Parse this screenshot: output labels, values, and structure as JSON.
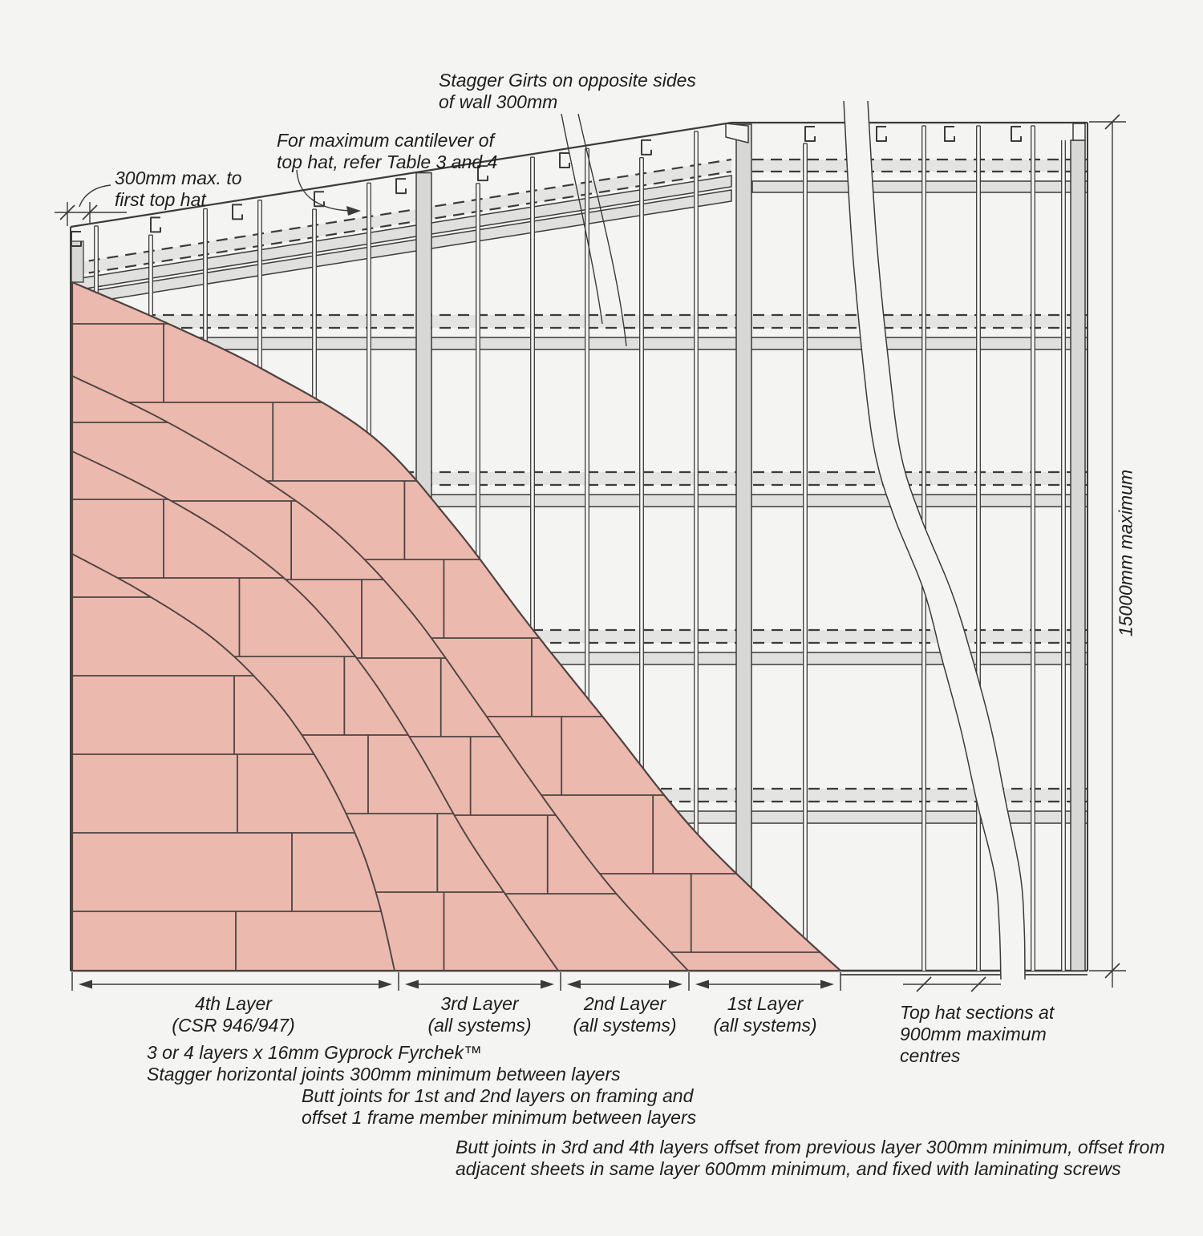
{
  "colors": {
    "background": "#f4f4f2",
    "line": "#3b3b39",
    "board_fill": "#ecb9ae",
    "board_line": "#4d4341",
    "steel_fill": "#d7d7d5",
    "girt_fill": "#e4e4e2",
    "girt_solid_fill": "#e0e0de",
    "stud_fill": "#f8f8f7",
    "text": "#1e1e1c"
  },
  "annotations": {
    "stagger_girts": {
      "line1": "Stagger Girts on opposite sides",
      "line2": "of wall 300mm"
    },
    "cantilever": {
      "line1": "For maximum cantilever of",
      "line2": "top hat, refer Table 3 and 4"
    },
    "first_top_hat": {
      "line1": "300mm max. to",
      "line2": "first top hat"
    },
    "wall_height": "15000mm maximum",
    "top_hat_centres": {
      "line1": "Top hat sections at",
      "line2": "900mm maximum",
      "line3": "centres"
    }
  },
  "layer_dimensions": [
    {
      "name": "4th Layer",
      "system": "(CSR 946/947)"
    },
    {
      "name": "3rd Layer",
      "system": "(all systems)"
    },
    {
      "name": "2nd Layer",
      "system": "(all systems)"
    },
    {
      "name": "1st Layer",
      "system": "(all systems)"
    }
  ],
  "notes": [
    {
      "line1": "3 or 4 layers x 16mm Gyprock Fyrchek™",
      "line2": "Stagger horizontal joints 300mm minimum between layers"
    },
    {
      "line1": "Butt joints for 1st and 2nd layers on framing and",
      "line2": "offset 1 frame member minimum between layers"
    },
    {
      "line1": "Butt joints in 3rd and 4th layers offset from previous layer 300mm minimum, offset from",
      "line2": "adjacent sheets in same layer 600mm minimum, and fixed with laminating screws"
    }
  ]
}
